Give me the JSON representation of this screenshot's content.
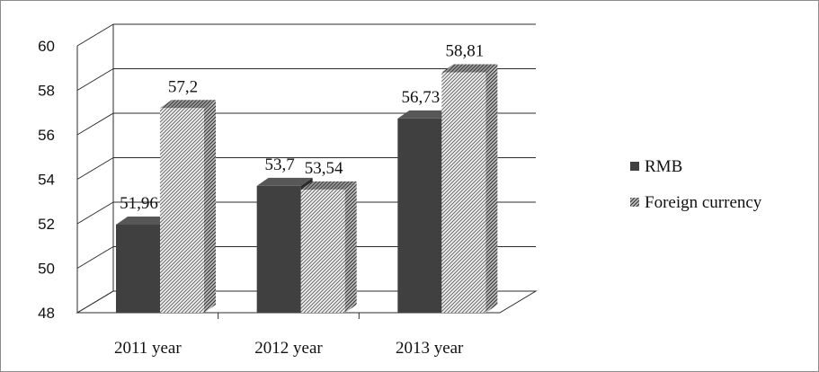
{
  "chart_data": {
    "type": "bar",
    "three_d": true,
    "categories": [
      "2011 year",
      "2012 year",
      "2013 year"
    ],
    "series": [
      {
        "name": "RMB",
        "values": [
          51.96,
          53.7,
          56.73
        ],
        "labels": [
          "51,96",
          "53,7",
          "56,73"
        ],
        "fill": "#404040",
        "pattern": "solid"
      },
      {
        "name": "Foreign currency",
        "values": [
          57.2,
          53.54,
          58.81
        ],
        "labels": [
          "57,2",
          "53,54",
          "58,81"
        ],
        "fill": "#ffffff",
        "pattern": "diagonal-hatch"
      }
    ],
    "yticks": [
      48,
      50,
      52,
      54,
      56,
      58,
      60
    ],
    "ylim": [
      48,
      60
    ],
    "grid": true,
    "legend_position": "right",
    "title": "",
    "xlabel": "",
    "ylabel": ""
  }
}
